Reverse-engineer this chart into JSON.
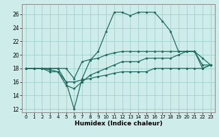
{
  "xlabel": "Humidex (Indice chaleur)",
  "background_color": "#ceecea",
  "grid_color": "#a0d0cc",
  "line_color": "#1e6b5e",
  "xlim": [
    -0.5,
    23.5
  ],
  "ylim": [
    11.5,
    27.5
  ],
  "yticks": [
    12,
    14,
    16,
    18,
    20,
    22,
    24,
    26
  ],
  "xtick_labels": [
    "0",
    "1",
    "2",
    "3",
    "4",
    "5",
    "6",
    "7",
    "8",
    "9",
    "10",
    "11",
    "12",
    "13",
    "14",
    "15",
    "16",
    "17",
    "18",
    "19",
    "20",
    "21",
    "22",
    "23"
  ],
  "series": [
    [
      18.0,
      18.0,
      18.0,
      18.0,
      18.0,
      16.0,
      12.0,
      16.5,
      19.2,
      20.5,
      23.5,
      26.3,
      26.3,
      25.8,
      26.3,
      26.3,
      26.3,
      25.0,
      23.5,
      20.5,
      20.5,
      20.5,
      19.5,
      18.5
    ],
    [
      18.0,
      18.0,
      18.0,
      18.0,
      18.0,
      18.0,
      16.5,
      19.0,
      19.3,
      19.5,
      20.0,
      20.3,
      20.5,
      20.5,
      20.5,
      20.5,
      20.5,
      20.5,
      20.5,
      20.5,
      20.5,
      20.5,
      18.5,
      18.5
    ],
    [
      18.0,
      18.0,
      18.0,
      17.8,
      17.5,
      15.5,
      15.0,
      16.0,
      17.0,
      17.5,
      18.0,
      18.5,
      19.0,
      19.0,
      19.0,
      19.5,
      19.5,
      19.5,
      19.5,
      20.0,
      20.5,
      20.5,
      18.0,
      18.5
    ],
    [
      18.0,
      18.0,
      18.0,
      17.5,
      17.5,
      16.0,
      16.0,
      16.3,
      16.5,
      16.8,
      17.0,
      17.3,
      17.5,
      17.5,
      17.5,
      17.5,
      18.0,
      18.0,
      18.0,
      18.0,
      18.0,
      18.0,
      18.0,
      18.5
    ]
  ]
}
